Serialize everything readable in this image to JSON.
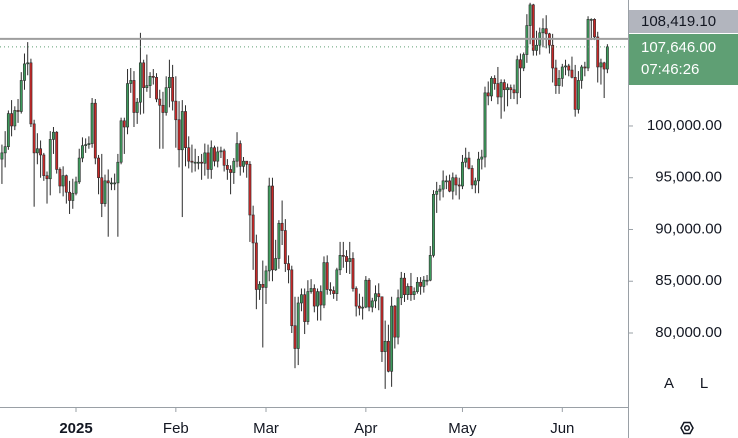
{
  "chart_data": {
    "type": "candlestick",
    "xlim": [
      -0.6,
      194.4
    ],
    "ylim": [
      72850,
      112170
    ],
    "xticks": [
      {
        "value": 23,
        "label": "2025"
      },
      {
        "value": 54,
        "label": "Feb"
      },
      {
        "value": 82,
        "label": "Mar"
      },
      {
        "value": 113,
        "label": "Apr"
      },
      {
        "value": 143,
        "label": "May"
      },
      {
        "value": 174,
        "label": "Jun"
      }
    ],
    "yticks": [
      {
        "value": 80000,
        "label": "80,000.00"
      },
      {
        "value": 85000,
        "label": "85,000.00"
      },
      {
        "value": 90000,
        "label": "90,000.00"
      },
      {
        "value": 95000,
        "label": "95,000.00"
      },
      {
        "value": 100000,
        "label": "100,000.00"
      }
    ],
    "up_color": "#3d9a5c",
    "down_color": "#c62828",
    "wick_color": "#2b2b2b",
    "reference_line": {
      "value": 108419.1,
      "label": "108,419.10",
      "color": "#9e9e9e"
    },
    "last_price": {
      "value": 107646,
      "label": "107,646.00",
      "countdown": "07:46:26",
      "color": "#5f9f74"
    },
    "open": [
      96800,
      97400,
      98000,
      101200,
      100000,
      101500,
      101400,
      104400,
      106000,
      106100,
      100200,
      97400,
      97800,
      97200,
      95200,
      94900,
      98700,
      99400,
      95800,
      94200,
      95200,
      93600,
      92800,
      93500,
      94600,
      96900,
      98100,
      98200,
      98300,
      102200,
      96900,
      95000,
      92500,
      94700,
      94500,
      94500,
      94500,
      96500,
      100500,
      99900,
      104100,
      104400,
      101300,
      102300,
      106100,
      103700,
      103900,
      104800,
      104700,
      102600,
      102000,
      101300,
      103700,
      104700,
      102400,
      100600,
      97700,
      101400,
      97900,
      96600,
      96500,
      96500,
      96500,
      96400,
      97400,
      95800,
      97900,
      96600,
      97500,
      97600,
      96200,
      95800,
      95500,
      96600,
      98300,
      96100,
      96600,
      96300,
      91400,
      88700,
      84200,
      84700,
      84400,
      86000,
      94200,
      86100,
      87200,
      90600,
      89900,
      86700,
      86100,
      80700,
      78500,
      82900,
      83700,
      81100,
      84000,
      84300,
      82600,
      84000,
      82700,
      86800,
      84200,
      84100,
      83800,
      86100,
      87500,
      87400,
      86900,
      87200,
      84300,
      82600,
      82400,
      82500,
      85100,
      82500,
      83100,
      83800,
      83500,
      78200,
      79200,
      76300,
      82600,
      79600,
      83400,
      85300,
      83700,
      84500,
      83700,
      84000,
      84900,
      84500,
      85100,
      85100,
      87500,
      93400,
      93700,
      93900,
      94700,
      94700,
      93700,
      95000,
      94300,
      94200,
      96500,
      96900,
      95900,
      94300,
      94700,
      96800,
      97000,
      103200,
      102900,
      104600,
      104100,
      102800,
      104200,
      103500,
      103700,
      103500,
      103200,
      106400,
      105600,
      106900,
      109700,
      111700,
      107300,
      107800,
      109000,
      109400,
      108900,
      107800,
      105600,
      103900,
      104600,
      105700,
      105800,
      105400,
      104700,
      101600,
      104400,
      105700,
      105600,
      110300,
      110300,
      108600,
      105700,
      106100,
      105500
    ],
    "high": [
      98200,
      99500,
      101500,
      102500,
      101900,
      102600,
      105200,
      107000,
      108100,
      106500,
      100600,
      99300,
      98600,
      97400,
      95600,
      99500,
      99900,
      99500,
      96000,
      96100,
      95300,
      94700,
      94900,
      95100,
      97800,
      98900,
      98800,
      99000,
      102700,
      102600,
      97200,
      97300,
      95300,
      95800,
      95000,
      95400,
      97300,
      100800,
      100800,
      105500,
      105600,
      105300,
      102700,
      109000,
      106400,
      106900,
      105200,
      105500,
      105100,
      103500,
      103300,
      104800,
      106400,
      105900,
      104800,
      102400,
      102500,
      102000,
      99000,
      98200,
      97800,
      97100,
      97300,
      98300,
      98200,
      98600,
      98100,
      98000,
      98000,
      97800,
      96800,
      96200,
      96900,
      99400,
      98600,
      97000,
      96600,
      96600,
      92300,
      89500,
      85000,
      87000,
      86500,
      95000,
      95000,
      89000,
      90900,
      92800,
      91000,
      87500,
      86500,
      83500,
      83500,
      84300,
      84300,
      85100,
      85200,
      84700,
      84300,
      84600,
      87400,
      87500,
      84900,
      84500,
      86300,
      88800,
      88800,
      88000,
      88800,
      87800,
      84500,
      83800,
      83500,
      85500,
      85300,
      83400,
      84600,
      84800,
      83500,
      81200,
      80800,
      83500,
      82700,
      84200,
      85900,
      85800,
      84800,
      85800,
      84400,
      85400,
      85400,
      85500,
      85600,
      88400,
      93800,
      94600,
      94300,
      95700,
      95200,
      95300,
      95500,
      95300,
      95000,
      97200,
      97900,
      97500,
      96200,
      95000,
      97500,
      97700,
      103800,
      104300,
      104800,
      104900,
      105700,
      104500,
      104500,
      104100,
      104000,
      104000,
      106800,
      107000,
      107100,
      110800,
      111900,
      111800,
      109200,
      109500,
      110400,
      110700,
      109000,
      108900,
      106400,
      105400,
      106000,
      106400,
      106000,
      106700,
      105900,
      105300,
      105900,
      106200,
      110600,
      110400,
      110400,
      109100,
      106500,
      106200,
      107900
    ],
    "low": [
      94400,
      96000,
      97700,
      99000,
      99600,
      100300,
      101200,
      103500,
      104900,
      99900,
      92200,
      96300,
      95000,
      94700,
      92500,
      93300,
      97300,
      95400,
      93500,
      93200,
      92500,
      91500,
      92000,
      93300,
      94400,
      96500,
      97400,
      97800,
      97900,
      96300,
      93400,
      91200,
      92200,
      89300,
      93800,
      93800,
      89300,
      96300,
      97300,
      99200,
      103200,
      99900,
      100200,
      101100,
      101200,
      103300,
      102700,
      104000,
      102300,
      97800,
      97800,
      101000,
      101800,
      101500,
      97900,
      96000,
      91200,
      96100,
      95900,
      95500,
      95600,
      95800,
      94800,
      95200,
      94900,
      94900,
      96100,
      96000,
      96900,
      95600,
      94800,
      93400,
      94400,
      96000,
      95200,
      95500,
      95000,
      88800,
      86100,
      82300,
      83200,
      78600,
      82800,
      85000,
      85000,
      86000,
      86200,
      88500,
      85900,
      84800,
      80000,
      76600,
      76900,
      82100,
      79900,
      80800,
      83800,
      82000,
      81200,
      81200,
      82400,
      83700,
      83700,
      83300,
      83100,
      85600,
      86300,
      85800,
      85700,
      84000,
      81600,
      81700,
      81300,
      82400,
      82100,
      82000,
      82400,
      82200,
      77200,
      74600,
      76200,
      74800,
      78500,
      78900,
      82700,
      83000,
      83200,
      83100,
      83200,
      83800,
      83700,
      83900,
      84600,
      85000,
      87300,
      91600,
      92800,
      93100,
      93900,
      93600,
      92900,
      93300,
      92900,
      93900,
      96000,
      95800,
      93900,
      93500,
      93500,
      95800,
      96000,
      102000,
      102400,
      103500,
      102100,
      100700,
      101400,
      101900,
      102600,
      102600,
      102100,
      102700,
      105300,
      106100,
      107900,
      106800,
      106800,
      106900,
      107600,
      107500,
      107000,
      104200,
      103100,
      103100,
      103800,
      104900,
      104800,
      104600,
      100900,
      101200,
      103600,
      104800,
      105300,
      108300,
      108300,
      104200,
      104000,
      102700,
      105100
    ],
    "close": [
      97400,
      98000,
      101200,
      100000,
      101500,
      101400,
      104400,
      106000,
      106100,
      100200,
      97400,
      97800,
      97200,
      95200,
      94900,
      98700,
      99400,
      95800,
      94200,
      95200,
      93600,
      92800,
      93500,
      94600,
      96900,
      98100,
      98200,
      98300,
      102200,
      96900,
      95000,
      92500,
      94700,
      94500,
      94500,
      94500,
      96500,
      100500,
      99900,
      104100,
      104400,
      101300,
      102300,
      106100,
      103700,
      103900,
      104800,
      104700,
      102600,
      102000,
      101300,
      103700,
      104700,
      102400,
      100600,
      97700,
      101400,
      97900,
      96600,
      96500,
      96500,
      96500,
      96400,
      97400,
      95800,
      97900,
      96600,
      97500,
      97600,
      96200,
      95800,
      95500,
      96600,
      98300,
      96100,
      96600,
      96300,
      91400,
      88700,
      84200,
      84700,
      84400,
      86000,
      94200,
      86100,
      87200,
      90600,
      89900,
      86700,
      86100,
      80700,
      78500,
      82900,
      83700,
      81100,
      84000,
      84300,
      82600,
      84000,
      82700,
      86800,
      84200,
      84100,
      83800,
      86100,
      87500,
      87400,
      86900,
      87200,
      84300,
      82600,
      82400,
      82500,
      85100,
      82500,
      83100,
      83800,
      83500,
      78200,
      79200,
      76300,
      82600,
      79600,
      83400,
      85300,
      83700,
      84500,
      83700,
      84000,
      84900,
      84500,
      85100,
      85100,
      87500,
      93400,
      93700,
      93900,
      94700,
      94700,
      93700,
      95000,
      94300,
      94200,
      96500,
      96900,
      95900,
      94300,
      94700,
      96800,
      97000,
      103200,
      102900,
      104600,
      104100,
      102800,
      104200,
      103500,
      103700,
      103500,
      103200,
      106400,
      105600,
      106900,
      109700,
      111700,
      107300,
      107800,
      109000,
      109400,
      108900,
      107800,
      105600,
      103900,
      104600,
      105700,
      105800,
      105400,
      104700,
      101600,
      104400,
      105700,
      105600,
      110300,
      110300,
      108600,
      105700,
      106100,
      105500,
      107646
    ]
  },
  "controls": {
    "auto": "A",
    "log": "L"
  }
}
